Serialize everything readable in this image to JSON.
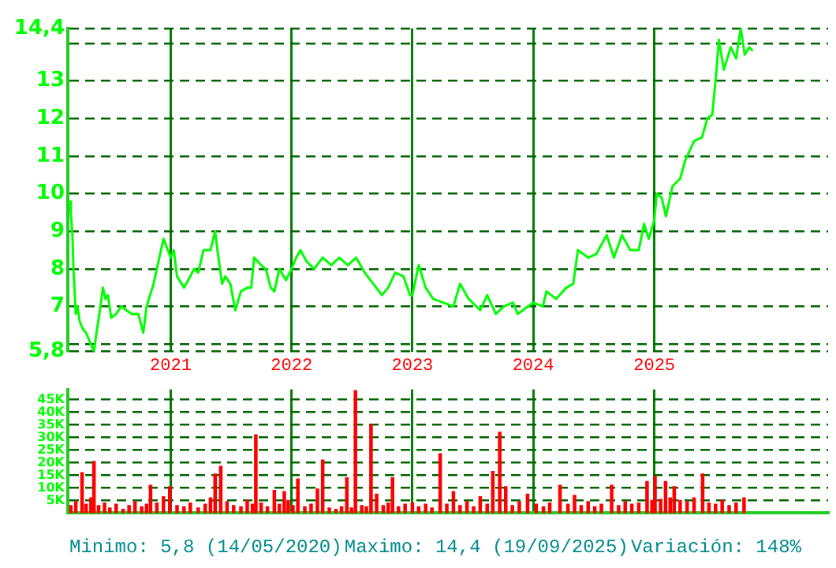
{
  "chart_data": [
    {
      "type": "line",
      "x": [
        "2020-03-01",
        "2020-03-05",
        "2020-03-10",
        "2020-03-13",
        "2020-03-20",
        "2020-03-25",
        "2020-04-01",
        "2020-04-10",
        "2020-04-20",
        "2020-05-14",
        "2020-05-20",
        "2020-06-01",
        "2020-06-10",
        "2020-06-18",
        "2020-06-25",
        "2020-07-05",
        "2020-07-20",
        "2020-08-05",
        "2020-08-20",
        "2020-09-05",
        "2020-09-25",
        "2020-10-10",
        "2020-10-20",
        "2020-11-10",
        "2020-11-25",
        "2020-12-10",
        "2021-01-01",
        "2021-01-10",
        "2021-01-20",
        "2021-02-10",
        "2021-03-01",
        "2021-03-12",
        "2021-03-25",
        "2021-04-10",
        "2021-05-01",
        "2021-05-15",
        "2021-05-25",
        "2021-06-05",
        "2021-06-15",
        "2021-06-30",
        "2021-07-15",
        "2021-08-01",
        "2021-08-20",
        "2021-09-01",
        "2021-09-10",
        "2021-10-01",
        "2021-10-15",
        "2021-10-30",
        "2021-11-10",
        "2021-11-25",
        "2021-12-15",
        "2022-01-01",
        "2022-01-15",
        "2022-01-28",
        "2022-02-15",
        "2022-03-10",
        "2022-04-05",
        "2022-05-01",
        "2022-05-25",
        "2022-06-20",
        "2022-07-15",
        "2022-08-10",
        "2022-09-05",
        "2022-10-01",
        "2022-10-20",
        "2022-11-10",
        "2022-12-05",
        "2022-12-25",
        "2023-01-01",
        "2023-01-20",
        "2023-02-10",
        "2023-03-05",
        "2023-04-05",
        "2023-05-05",
        "2023-05-25",
        "2023-06-20",
        "2023-07-25",
        "2023-08-15",
        "2023-09-10",
        "2023-10-05",
        "2023-11-01",
        "2023-11-15",
        "2024-01-01",
        "2024-01-30",
        "2024-02-10",
        "2024-03-10",
        "2024-04-10",
        "2024-05-01",
        "2024-05-15",
        "2024-06-15",
        "2024-07-10",
        "2024-08-10",
        "2024-09-01",
        "2024-09-25",
        "2024-10-20",
        "2024-11-15",
        "2024-12-01",
        "2024-12-15",
        "2025-01-01",
        "2025-01-08",
        "2025-01-23",
        "2025-02-05",
        "2025-02-25",
        "2025-03-20",
        "2025-04-05",
        "2025-05-01",
        "2025-05-25",
        "2025-06-10",
        "2025-06-25",
        "2025-07-07",
        "2025-07-15",
        "2025-07-30",
        "2025-08-20",
        "2025-09-05",
        "2025-09-19",
        "2025-10-01",
        "2025-10-15",
        "2025-10-25"
      ],
      "series": [
        {
          "color": "#00ff00",
          "values": [
            9.8,
            9.5,
            8.9,
            8.0,
            6.8,
            7.0,
            6.6,
            6.4,
            6.3,
            5.8,
            6.2,
            6.9,
            7.5,
            7.2,
            7.3,
            6.7,
            6.8,
            7.0,
            6.9,
            6.8,
            6.8,
            6.3,
            7.0,
            7.6,
            8.2,
            8.8,
            8.3,
            8.5,
            7.8,
            7.5,
            7.8,
            8.0,
            7.9,
            8.5,
            8.5,
            9.0,
            8.3,
            7.6,
            7.8,
            7.6,
            6.9,
            7.4,
            7.5,
            7.5,
            8.3,
            8.1,
            8.0,
            7.5,
            7.4,
            8.0,
            7.7,
            8.0,
            8.3,
            8.5,
            8.2,
            8.0,
            8.3,
            8.1,
            8.3,
            8.1,
            8.3,
            7.9,
            7.6,
            7.3,
            7.5,
            7.9,
            7.8,
            7.3,
            7.3,
            8.1,
            7.5,
            7.2,
            7.1,
            7.0,
            7.6,
            7.2,
            6.9,
            7.3,
            6.8,
            7.0,
            7.1,
            6.8,
            7.1,
            7.0,
            7.4,
            7.2,
            7.5,
            7.6,
            8.5,
            8.3,
            8.4,
            8.9,
            8.3,
            8.9,
            8.5,
            8.5,
            9.2,
            8.8,
            9.3,
            10.0,
            9.9,
            9.4,
            10.2,
            10.4,
            10.9,
            11.4,
            11.5,
            12.0,
            12.1,
            13.2,
            14.1,
            13.3,
            13.9,
            13.6,
            14.4,
            13.7,
            13.9,
            13.8
          ]
        }
      ],
      "xlim": [
        "2020-02-25",
        "2026-06-10"
      ],
      "xticks": [
        "2021",
        "2022",
        "2023",
        "2024",
        "2025"
      ],
      "ylim": [
        5.8,
        14.4
      ],
      "yticks": [
        {
          "value": 5.8,
          "label": "5,8"
        },
        {
          "value": 6,
          "label": null
        },
        7,
        8,
        9,
        10,
        11,
        12,
        13,
        {
          "value": 14,
          "label": null
        },
        {
          "value": 14.4,
          "label": "14,4"
        }
      ],
      "grid": true
    },
    {
      "type": "bar",
      "x": [
        "2020-03-05",
        "2020-03-20",
        "2020-04-08",
        "2020-04-20",
        "2020-05-05",
        "2020-05-14",
        "2020-05-28",
        "2020-06-15",
        "2020-07-01",
        "2020-07-20",
        "2020-08-10",
        "2020-08-28",
        "2020-09-15",
        "2020-10-05",
        "2020-10-20",
        "2020-11-01",
        "2020-11-20",
        "2020-12-10",
        "2020-12-29",
        "2021-01-20",
        "2021-02-10",
        "2021-03-01",
        "2021-03-25",
        "2021-04-15",
        "2021-05-01",
        "2021-05-15",
        "2021-06-01",
        "2021-06-20",
        "2021-07-10",
        "2021-08-01",
        "2021-08-20",
        "2021-09-05",
        "2021-09-15",
        "2021-10-01",
        "2021-10-20",
        "2021-11-10",
        "2021-11-25",
        "2021-12-10",
        "2021-12-22",
        "2022-01-05",
        "2022-01-20",
        "2022-02-10",
        "2022-03-01",
        "2022-03-20",
        "2022-04-05",
        "2022-04-25",
        "2022-05-15",
        "2022-06-01",
        "2022-06-17",
        "2022-07-01",
        "2022-07-13",
        "2022-08-01",
        "2022-08-15",
        "2022-08-29",
        "2022-09-15",
        "2022-10-05",
        "2022-10-20",
        "2022-11-02",
        "2022-11-20",
        "2022-12-10",
        "2023-01-01",
        "2023-01-20",
        "2023-02-10",
        "2023-03-01",
        "2023-03-26",
        "2023-04-15",
        "2023-05-05",
        "2023-05-25",
        "2023-06-15",
        "2023-07-05",
        "2023-07-25",
        "2023-08-15",
        "2023-09-01",
        "2023-09-22",
        "2023-10-10",
        "2023-10-30",
        "2023-11-20",
        "2023-12-15",
        "2024-01-10",
        "2024-02-01",
        "2024-02-20",
        "2024-03-22",
        "2024-04-15",
        "2024-05-05",
        "2024-05-25",
        "2024-06-15",
        "2024-07-05",
        "2024-07-25",
        "2024-08-25",
        "2024-09-15",
        "2024-10-05",
        "2024-10-25",
        "2024-11-15",
        "2024-12-10",
        "2024-12-25",
        "2025-01-03",
        "2025-01-20",
        "2025-02-04",
        "2025-02-18",
        "2025-03-02",
        "2025-03-20",
        "2025-04-10",
        "2025-05-01",
        "2025-05-27",
        "2025-06-15",
        "2025-07-05",
        "2025-07-25",
        "2025-08-15",
        "2025-09-05",
        "2025-09-29"
      ],
      "series": [
        {
          "color": "#ff0000",
          "values": [
            3000,
            4500,
            16000,
            3500,
            6000,
            20500,
            3000,
            4000,
            2000,
            3500,
            1500,
            3000,
            4500,
            2500,
            3500,
            11000,
            4000,
            6500,
            10500,
            3000,
            2500,
            4000,
            2000,
            3500,
            6000,
            15500,
            18500,
            4500,
            3000,
            2500,
            5000,
            3500,
            31000,
            4000,
            2500,
            9000,
            3500,
            8500,
            5000,
            3000,
            13500,
            2500,
            3500,
            9500,
            21000,
            2000,
            1500,
            2500,
            14000,
            2000,
            48500,
            3000,
            2500,
            35000,
            7500,
            3000,
            4000,
            14000,
            2500,
            3500,
            4000,
            2500,
            3500,
            2000,
            23500,
            3500,
            8500,
            3000,
            4500,
            2500,
            6500,
            3500,
            16500,
            32000,
            10500,
            3000,
            4500,
            7500,
            3500,
            2500,
            4000,
            11000,
            3500,
            7000,
            3000,
            4500,
            2500,
            3500,
            11000,
            3000,
            4500,
            3500,
            4000,
            12500,
            5000,
            14500,
            5500,
            12500,
            6000,
            10500,
            5000,
            4500,
            6000,
            15500,
            4000,
            3500,
            5000,
            3000,
            4000,
            6000
          ]
        }
      ],
      "xlim": [
        "2020-02-25",
        "2026-06-10"
      ],
      "xticks": [
        {
          "value": "2021",
          "label": null
        },
        {
          "value": "2022",
          "label": null
        },
        {
          "value": "2023",
          "label": null
        },
        {
          "value": "2024",
          "label": null
        },
        {
          "value": "2025",
          "label": null
        }
      ],
      "ylim": [
        0,
        49000
      ],
      "yticks": [
        {
          "value": 5000,
          "label": "5K"
        },
        {
          "value": 10000,
          "label": "10K"
        },
        {
          "value": 15000,
          "label": "15K"
        },
        {
          "value": 20000,
          "label": "20K"
        },
        {
          "value": 25000,
          "label": "25K"
        },
        {
          "value": 30000,
          "label": "30K"
        },
        {
          "value": 35000,
          "label": "35K"
        },
        {
          "value": 40000,
          "label": "40K"
        },
        {
          "value": 45000,
          "label": "45K"
        }
      ],
      "tick_labels": "y",
      "grid": true,
      "annotations": [
        "Minimo: 5,8 (14/05/2020)",
        "Maximo: 14,4 (19/09/2025)",
        "Variación: 148%"
      ]
    }
  ]
}
